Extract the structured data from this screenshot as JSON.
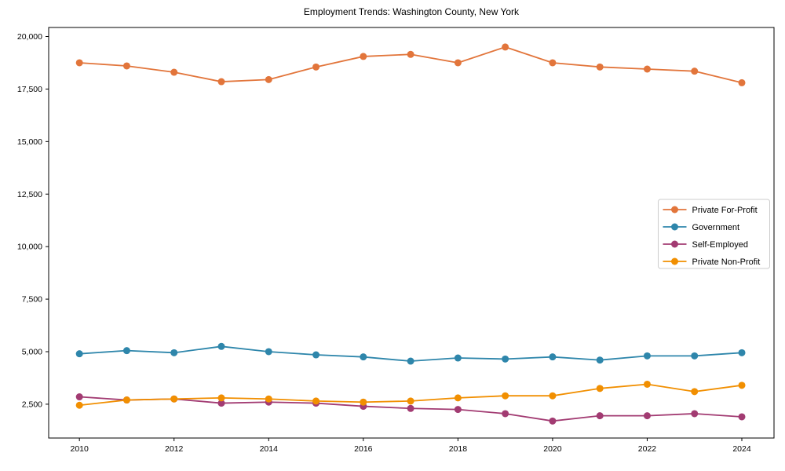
{
  "chart_data": {
    "type": "line",
    "title": "Employment Trends: Washington County, New York",
    "xlabel": "",
    "ylabel": "",
    "grid": false,
    "x": [
      2010,
      2011,
      2012,
      2013,
      2014,
      2015,
      2016,
      2017,
      2018,
      2019,
      2020,
      2021,
      2022,
      2023,
      2024
    ],
    "series": [
      {
        "name": "Private For-Profit",
        "color": "#E2753B",
        "values": [
          18750,
          18600,
          18300,
          17850,
          17950,
          18550,
          19050,
          19150,
          18750,
          19500,
          18750,
          18550,
          18450,
          18350,
          17800
        ]
      },
      {
        "name": "Government",
        "color": "#2E86AB",
        "values": [
          4900,
          5050,
          4950,
          5250,
          5000,
          4850,
          4750,
          4550,
          4700,
          4650,
          4750,
          4600,
          4800,
          4800,
          4950
        ]
      },
      {
        "name": "Self-Employed",
        "color": "#A23B72",
        "values": [
          2850,
          2700,
          2750,
          2550,
          2600,
          2550,
          2400,
          2300,
          2250,
          2050,
          1700,
          1950,
          1950,
          2050,
          1900
        ]
      },
      {
        "name": "Private Non-Profit",
        "color": "#F18F01",
        "values": [
          2450,
          2700,
          2750,
          2800,
          2750,
          2650,
          2600,
          2650,
          2800,
          2900,
          2900,
          3250,
          3450,
          3100,
          3400
        ]
      }
    ],
    "xlim": [
      2009.35,
      2024.68
    ],
    "ylim": [
      890,
      20430
    ],
    "x_ticks": [
      {
        "value": 2010,
        "label": "2010"
      },
      {
        "value": 2012,
        "label": "2012"
      },
      {
        "value": 2014,
        "label": "2014"
      },
      {
        "value": 2016,
        "label": "2016"
      },
      {
        "value": 2018,
        "label": "2018"
      },
      {
        "value": 2020,
        "label": "2020"
      },
      {
        "value": 2022,
        "label": "2022"
      },
      {
        "value": 2024,
        "label": "2024"
      }
    ],
    "y_ticks": [
      {
        "value": 2500,
        "label": "2,500"
      },
      {
        "value": 5000,
        "label": "5,000"
      },
      {
        "value": 7500,
        "label": "7,500"
      },
      {
        "value": 10000,
        "label": "10,000"
      },
      {
        "value": 12500,
        "label": "12,500"
      },
      {
        "value": 15000,
        "label": "15,000"
      },
      {
        "value": 17500,
        "label": "17,500"
      },
      {
        "value": 20000,
        "label": "20,000"
      }
    ],
    "legend": {
      "position": "center right",
      "entries": [
        "Private For-Profit",
        "Government",
        "Self-Employed",
        "Private Non-Profit"
      ]
    }
  }
}
